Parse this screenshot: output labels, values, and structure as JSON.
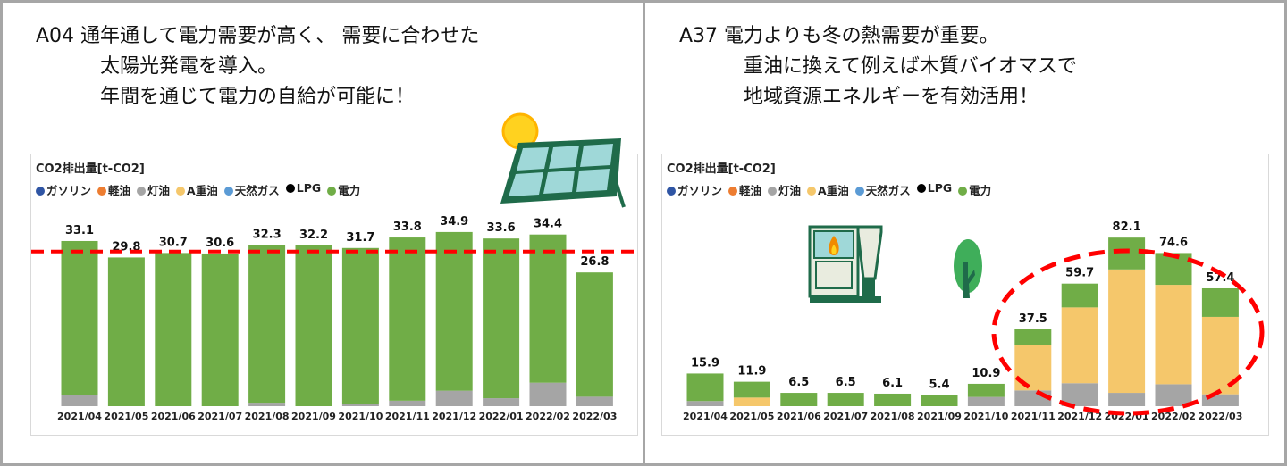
{
  "left_panel": {
    "lines": [
      "A04 通年通して電力需要が高く、 需要に合わせた",
      "太陽光発電を導入。",
      "年間を通じて電力の自給が可能に！"
    ]
  },
  "right_panel": {
    "lines": [
      "A37 電力よりも冬の熱需要が重要。",
      "重油に換えて例えば木質バイオマスで",
      "地域資源エネルギーを有効活用！"
    ]
  },
  "legend": [
    {
      "label": "ガソリン",
      "color": "#2f55a4"
    },
    {
      "label": "軽油",
      "color": "#ed7d31"
    },
    {
      "label": "灯油",
      "color": "#a5a5a5"
    },
    {
      "label": "A重油",
      "color": "#f5c76b"
    },
    {
      "label": "天然ガス",
      "color": "#5b9bd5"
    },
    {
      "label": "LPG",
      "color": "#000000"
    },
    {
      "label": "電力",
      "color": "#70ad47"
    }
  ],
  "chart_data": [
    {
      "type": "bar",
      "stacked": true,
      "title": "CO2排出量[t-CO2]",
      "categories": [
        "2021/04",
        "2021/05",
        "2021/06",
        "2021/07",
        "2021/08",
        "2021/09",
        "2021/10",
        "2021/11",
        "2021/12",
        "2022/01",
        "2022/02",
        "2022/03"
      ],
      "totals": [
        33.1,
        29.8,
        30.7,
        30.6,
        32.3,
        32.2,
        31.7,
        33.8,
        34.9,
        33.6,
        34.4,
        26.8
      ],
      "series": [
        {
          "name": "灯油",
          "color": "#a5a5a5",
          "values": [
            2.2,
            0,
            0,
            0,
            0.7,
            0,
            0.4,
            1.1,
            3.1,
            1.6,
            4.7,
            1.9
          ]
        },
        {
          "name": "A重油",
          "color": "#f5c76b",
          "values": [
            0,
            0,
            0,
            0,
            0,
            0,
            0,
            0,
            0,
            0,
            0,
            0
          ]
        },
        {
          "name": "電力",
          "color": "#70ad47",
          "values": [
            30.9,
            29.8,
            30.7,
            30.6,
            31.6,
            32.2,
            31.3,
            32.7,
            31.8,
            32.0,
            29.7,
            24.9
          ]
        }
      ],
      "reference_line": {
        "value": 31.0,
        "color": "#ff0000",
        "style": "dashed"
      },
      "icon": "solar-panel-icon"
    },
    {
      "type": "bar",
      "stacked": true,
      "title": "CO2排出量[t-CO2]",
      "categories": [
        "2021/04",
        "2021/05",
        "2021/06",
        "2021/07",
        "2021/08",
        "2021/09",
        "2021/10",
        "2021/11",
        "2021/12",
        "2022/01",
        "2022/02",
        "2022/03"
      ],
      "totals": [
        15.9,
        11.9,
        6.5,
        6.5,
        6.1,
        5.4,
        10.9,
        37.5,
        59.7,
        82.1,
        74.6,
        57.4
      ],
      "series": [
        {
          "name": "灯油",
          "color": "#a5a5a5",
          "values": [
            2.5,
            0,
            0,
            0,
            0,
            0,
            4.5,
            7.7,
            11.2,
            6.5,
            10.7,
            5.8
          ]
        },
        {
          "name": "A重油",
          "color": "#f5c76b",
          "values": [
            0,
            4.2,
            0,
            0,
            0,
            0,
            0,
            22.0,
            36.9,
            60.1,
            48.4,
            37.7
          ]
        },
        {
          "name": "電力",
          "color": "#70ad47",
          "values": [
            13.4,
            7.7,
            6.5,
            6.5,
            6.1,
            5.4,
            6.4,
            7.8,
            11.6,
            15.5,
            15.5,
            13.9
          ]
        }
      ],
      "highlight": {
        "shape": "ellipse",
        "color": "#ff0000",
        "style": "dashed",
        "categories": [
          "2021/11",
          "2022/03"
        ]
      },
      "icon": "biomass-boiler-icon"
    }
  ]
}
